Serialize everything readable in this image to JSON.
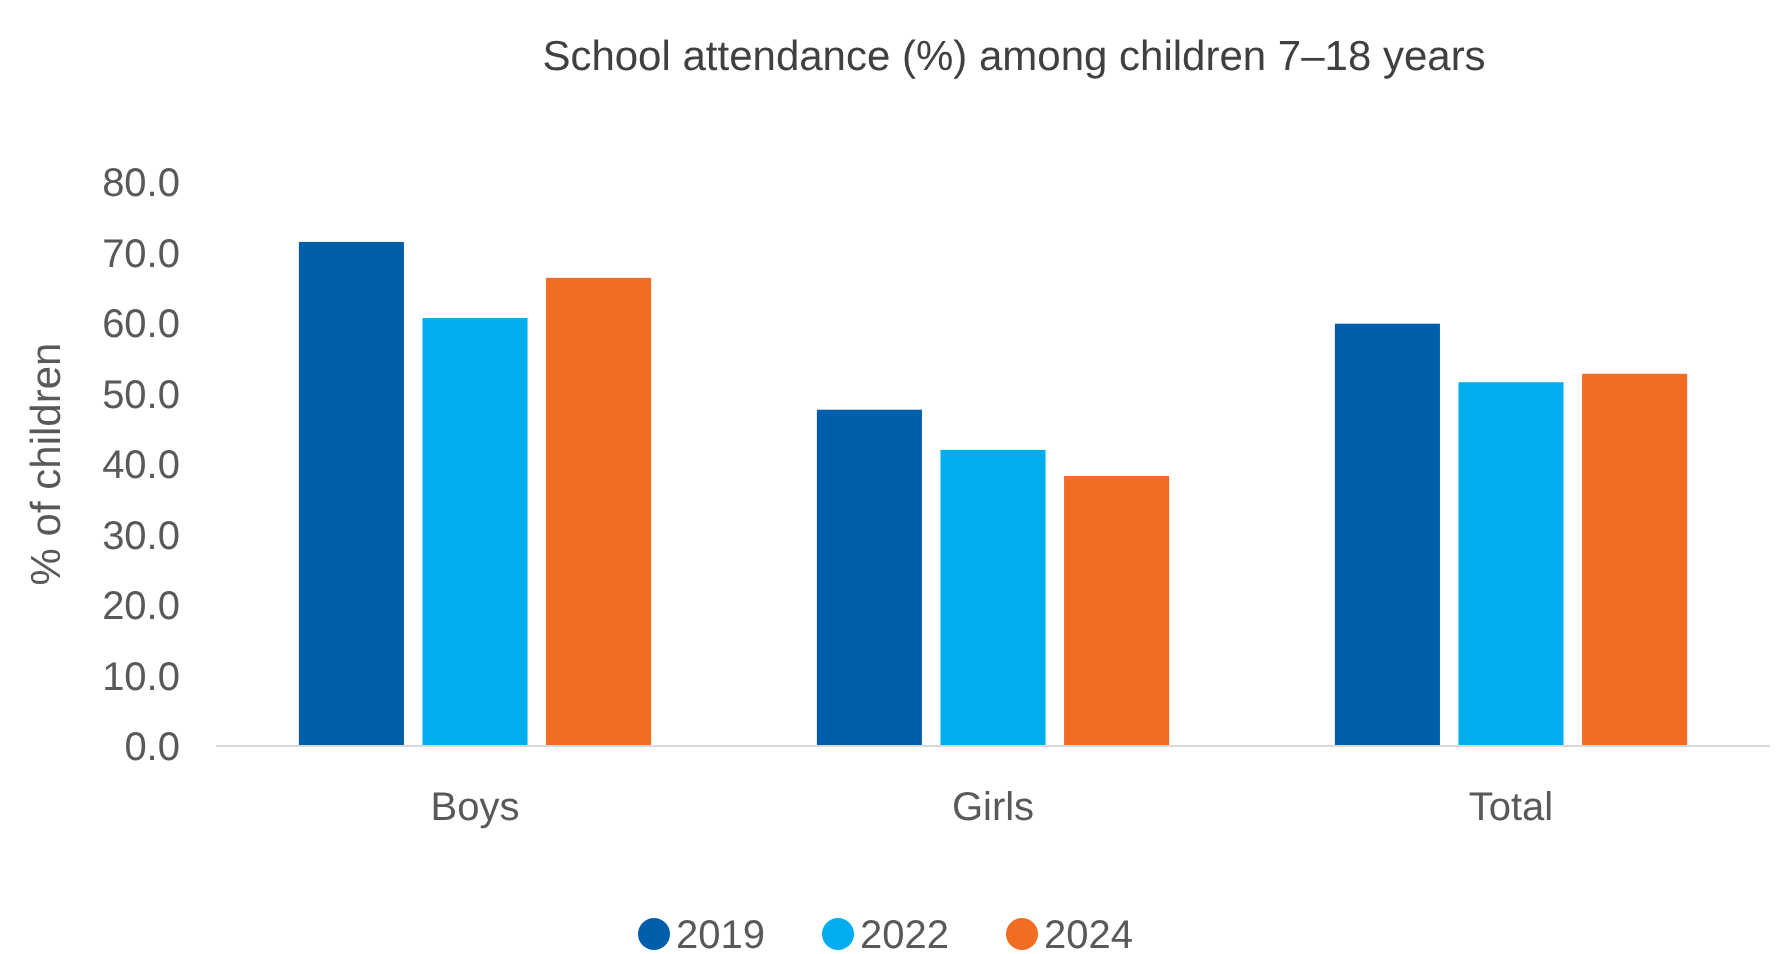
{
  "chart_data": {
    "type": "bar",
    "title": "School attendance (%) among children 7–18 years",
    "ylabel": "% of children",
    "categories": [
      "Boys",
      "Girls",
      "Total"
    ],
    "series": [
      {
        "name": "2019",
        "color": "#005eaa",
        "values": [
          71.5,
          47.7,
          59.9
        ]
      },
      {
        "name": "2022",
        "color": "#00aeef",
        "values": [
          60.7,
          42.0,
          51.6
        ]
      },
      {
        "name": "2024",
        "color": "#f26c22",
        "values": [
          66.4,
          38.3,
          52.8
        ]
      }
    ],
    "ylim": [
      0,
      80
    ],
    "yticks": [
      {
        "value": 0,
        "label": "0.0"
      },
      {
        "value": 10,
        "label": "10.0"
      },
      {
        "value": 20,
        "label": "20.0"
      },
      {
        "value": 30,
        "label": "30.0"
      },
      {
        "value": 40,
        "label": "40.0"
      },
      {
        "value": 50,
        "label": "50.0"
      },
      {
        "value": 60,
        "label": "60.0"
      },
      {
        "value": 70,
        "label": "70.0"
      },
      {
        "value": 80,
        "label": "80.0"
      }
    ],
    "grid": false,
    "legend": "bottom",
    "marker": "circle"
  }
}
